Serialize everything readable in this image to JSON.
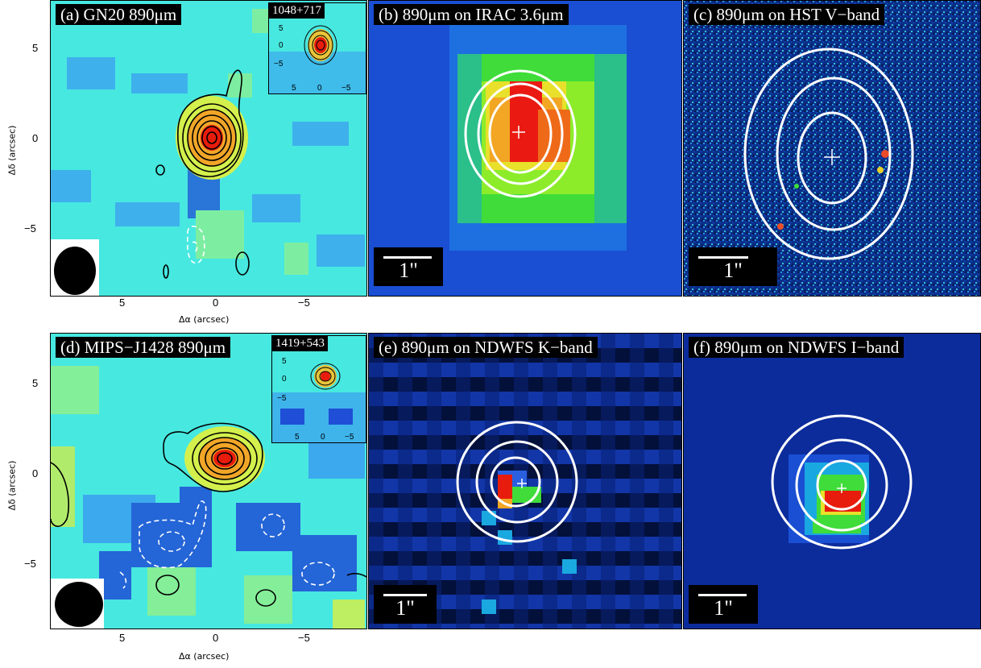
{
  "top_row": {
    "panel_a": {
      "label": "(a) GN20 890μm",
      "inset_label": "1048+717"
    },
    "panel_b": {
      "label": "(b) 890μm on IRAC 3.6μm",
      "scale": "1\""
    },
    "panel_c": {
      "label": "(c) 890μm on HST V−band",
      "scale": "1\""
    }
  },
  "bottom_row": {
    "panel_d": {
      "label": "(d) MIPS−J1428 890μm",
      "inset_label": "1419+543"
    },
    "panel_e": {
      "label": "(e) 890μm on NDWFS K−band",
      "scale": "1\""
    },
    "panel_f": {
      "label": "(f) 890μm on NDWFS I−band",
      "scale": "1\""
    }
  },
  "axes": {
    "xlabel": "Δα (arcsec)",
    "ylabel": "Δδ (arcsec)",
    "x_ticks": [
      "5",
      "0",
      "−5"
    ],
    "y_ticks": [
      "5",
      "0",
      "−5"
    ],
    "inset_x_ticks": [
      "5",
      "0",
      "−5"
    ],
    "inset_y_ticks": [
      "5",
      "0",
      "−5"
    ]
  },
  "colors": {
    "map_background": "#47e8e0",
    "negative": "#1f4fd6",
    "peak": "#e81c0c",
    "contour_positive": "#000000",
    "contour_negative": "#ffffff",
    "overlay_contour": "#ffffff"
  }
}
